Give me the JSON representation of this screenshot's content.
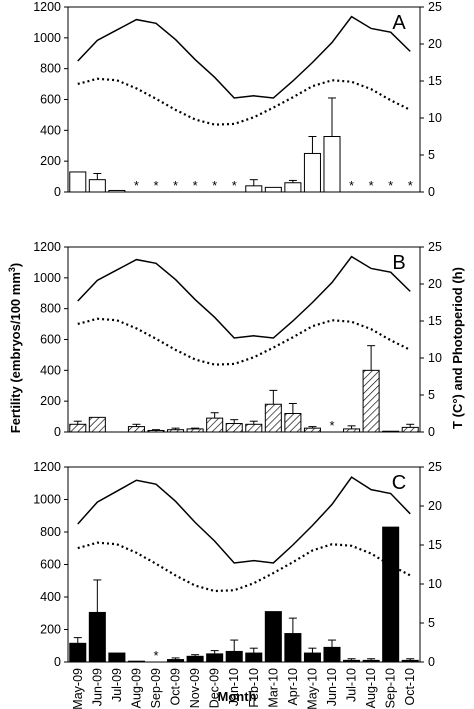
{
  "figure": {
    "y_left_label": "Fertility (embryos/100 mm",
    "y_left_label_sup": "3",
    "y_left_label_close": ")",
    "y_right_label": "T (C°) and Photoperiod (h)",
    "x_label": "Month"
  },
  "chart_data": [
    {
      "type": "bar",
      "panel": "A",
      "bar_style": "white",
      "categories": [
        "May-09",
        "Jun-09",
        "Jul-09",
        "Aug-09",
        "Sep-09",
        "Oct-09",
        "Nov-09",
        "Dec-09",
        "Jan-10",
        "Feb-10",
        "Mar-10",
        "Apr-10",
        "May-10",
        "Jun-10",
        "Jul-10",
        "Aug-10",
        "Sep-10",
        "Oct-10"
      ],
      "ylim_left": [
        0,
        1200
      ],
      "yticks_left": [
        0,
        200,
        400,
        600,
        800,
        1000,
        1200
      ],
      "ylim_right": [
        0,
        25
      ],
      "yticks_right": [
        0,
        5,
        10,
        15,
        20,
        25
      ],
      "fertility": [
        130,
        80,
        10,
        0,
        0,
        0,
        0,
        0,
        0,
        40,
        30,
        60,
        250,
        360,
        0,
        0,
        0,
        0
      ],
      "fertility_error": [
        0,
        40,
        0,
        0,
        0,
        0,
        0,
        0,
        0,
        40,
        0,
        15,
        110,
        250,
        0,
        0,
        0,
        0
      ],
      "asterisk_categories": [
        "Aug-09",
        "Sep-09",
        "Oct-09",
        "Nov-09",
        "Dec-09",
        "Jan-10",
        "Jul-10",
        "Aug-10",
        "Sep-10",
        "Oct-10"
      ],
      "asterisk": "*",
      "temperature": [
        17.7,
        20.5,
        21.9,
        23.3,
        22.8,
        20.6,
        17.9,
        15.5,
        12.7,
        13.0,
        12.7,
        15.0,
        17.5,
        20.2,
        23.7,
        22.1,
        21.6,
        19.0
      ],
      "photoperiod": [
        14.6,
        15.3,
        15.1,
        14.0,
        12.6,
        11.1,
        9.8,
        9.1,
        9.2,
        10.1,
        11.4,
        12.8,
        14.3,
        15.1,
        14.9,
        13.9,
        12.4,
        11.1
      ],
      "temperature_style": "solid",
      "photoperiod_style": "dotted"
    },
    {
      "type": "bar",
      "panel": "B",
      "bar_style": "hatched",
      "categories": [
        "May-09",
        "Jun-09",
        "Jul-09",
        "Aug-09",
        "Sep-09",
        "Oct-09",
        "Nov-09",
        "Dec-09",
        "Jan-10",
        "Feb-10",
        "Mar-10",
        "Apr-10",
        "May-10",
        "Jun-10",
        "Jul-10",
        "Aug-10",
        "Sep-10",
        "Oct-10"
      ],
      "ylim_left": [
        0,
        1200
      ],
      "yticks_left": [
        0,
        200,
        400,
        600,
        800,
        1000,
        1200
      ],
      "ylim_right": [
        0,
        25
      ],
      "yticks_right": [
        0,
        5,
        10,
        15,
        20,
        25
      ],
      "fertility": [
        50,
        95,
        0,
        35,
        10,
        15,
        20,
        90,
        55,
        50,
        180,
        120,
        25,
        0,
        20,
        400,
        5,
        30
      ],
      "fertility_error": [
        20,
        0,
        0,
        15,
        5,
        10,
        5,
        35,
        25,
        20,
        90,
        65,
        10,
        0,
        20,
        160,
        0,
        20
      ],
      "asterisk_categories": [
        "Jun-10"
      ],
      "asterisk": "*",
      "temperature": [
        17.7,
        20.5,
        21.9,
        23.3,
        22.8,
        20.6,
        17.9,
        15.5,
        12.7,
        13.0,
        12.7,
        15.0,
        17.5,
        20.2,
        23.7,
        22.1,
        21.6,
        19.0
      ],
      "photoperiod": [
        14.6,
        15.3,
        15.1,
        14.0,
        12.6,
        11.1,
        9.8,
        9.1,
        9.2,
        10.1,
        11.4,
        12.8,
        14.3,
        15.1,
        14.9,
        13.9,
        12.4,
        11.1
      ],
      "temperature_style": "solid",
      "photoperiod_style": "dotted"
    },
    {
      "type": "bar",
      "panel": "C",
      "bar_style": "black",
      "categories": [
        "May-09",
        "Jun-09",
        "Jul-09",
        "Aug-09",
        "Sep-09",
        "Oct-09",
        "Nov-09",
        "Dec-09",
        "Jan-10",
        "Feb-10",
        "Mar-10",
        "Apr-10",
        "May-10",
        "Jun-10",
        "Jul-10",
        "Aug-10",
        "Sep-10",
        "Oct-10"
      ],
      "ylim_left": [
        0,
        1200
      ],
      "yticks_left": [
        0,
        200,
        400,
        600,
        800,
        1000,
        1200
      ],
      "ylim_right": [
        0,
        25
      ],
      "yticks_right": [
        0,
        5,
        10,
        15,
        20,
        25
      ],
      "fertility": [
        115,
        305,
        55,
        5,
        0,
        15,
        35,
        50,
        65,
        55,
        310,
        175,
        55,
        90,
        10,
        10,
        830,
        10
      ],
      "fertility_error": [
        35,
        200,
        0,
        0,
        0,
        10,
        10,
        20,
        70,
        30,
        0,
        95,
        30,
        45,
        10,
        10,
        0,
        10
      ],
      "asterisk_categories": [
        "Sep-09"
      ],
      "asterisk": "*",
      "temperature": [
        17.7,
        20.5,
        21.9,
        23.3,
        22.8,
        20.6,
        17.9,
        15.5,
        12.7,
        13.0,
        12.7,
        15.0,
        17.5,
        20.2,
        23.7,
        22.1,
        21.6,
        19.0
      ],
      "photoperiod": [
        14.6,
        15.3,
        15.1,
        14.0,
        12.6,
        11.1,
        9.8,
        9.1,
        9.2,
        10.1,
        11.4,
        12.8,
        14.3,
        15.1,
        14.9,
        13.9,
        12.4,
        11.1
      ],
      "temperature_style": "solid",
      "photoperiod_style": "dotted"
    }
  ]
}
